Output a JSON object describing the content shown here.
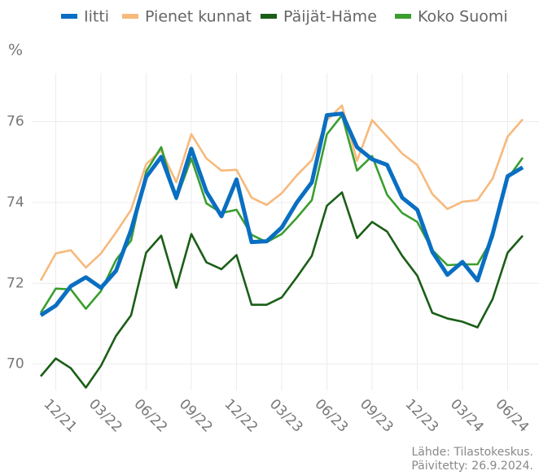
{
  "chart_data": {
    "type": "line",
    "y_label": "%",
    "categories": [
      null,
      "12/21",
      null,
      null,
      "03/22",
      null,
      null,
      "06/22",
      null,
      null,
      "09/22",
      null,
      null,
      "12/22",
      null,
      null,
      "03/23",
      null,
      null,
      "06/23",
      null,
      null,
      "09/23",
      null,
      null,
      "12/23",
      null,
      null,
      "03/24",
      null,
      null,
      "06/24",
      null
    ],
    "series": [
      {
        "name": "Iitti",
        "color": "#0a6fc2",
        "values": [
          71.21,
          71.45,
          71.93,
          72.15,
          71.89,
          72.31,
          73.32,
          74.63,
          75.13,
          74.12,
          75.33,
          74.27,
          73.66,
          74.57,
          73.02,
          73.04,
          73.38,
          74.0,
          74.5,
          76.16,
          76.2,
          75.37,
          75.07,
          74.93,
          74.12,
          73.82,
          72.78,
          72.21,
          72.53,
          72.07,
          73.22,
          74.65,
          74.87
        ]
      },
      {
        "name": "Pienet kunnat",
        "color": "#f7b97c",
        "values": [
          72.07,
          72.74,
          72.82,
          72.39,
          72.74,
          73.26,
          73.82,
          74.95,
          75.29,
          74.5,
          75.69,
          75.09,
          74.79,
          74.81,
          74.12,
          73.94,
          74.23,
          74.67,
          75.05,
          76.04,
          76.4,
          75.03,
          76.04,
          75.63,
          75.21,
          74.93,
          74.21,
          73.84,
          74.02,
          74.06,
          74.59,
          75.63,
          76.06
        ]
      },
      {
        "name": "Päijät-Häme",
        "color": "#1b5e17",
        "values": [
          69.7,
          70.14,
          69.9,
          69.42,
          69.96,
          70.7,
          71.21,
          72.76,
          73.18,
          71.89,
          73.22,
          72.52,
          72.35,
          72.7,
          71.47,
          71.47,
          71.65,
          72.15,
          72.68,
          73.92,
          74.25,
          73.12,
          73.52,
          73.28,
          72.68,
          72.19,
          71.27,
          71.13,
          71.05,
          70.91,
          71.61,
          72.76,
          73.18
        ]
      },
      {
        "name": "Koko Suomi",
        "color": "#3a9e2f",
        "values": [
          71.27,
          71.87,
          71.85,
          71.37,
          71.81,
          72.58,
          73.06,
          74.77,
          75.37,
          74.08,
          75.09,
          73.98,
          73.74,
          73.82,
          73.2,
          73.02,
          73.22,
          73.62,
          74.06,
          75.69,
          76.16,
          74.79,
          75.15,
          74.19,
          73.74,
          73.52,
          72.82,
          72.45,
          72.47,
          72.47,
          73.12,
          74.59,
          75.11
        ]
      }
    ],
    "ylim": [
      69.35,
      77.2
    ],
    "yticks": [
      70,
      72,
      74,
      76
    ],
    "grid": true,
    "legend": "top",
    "source": [
      "Lähde: Tilastokeskus.",
      "Päivitetty: 26.9.2024."
    ]
  }
}
